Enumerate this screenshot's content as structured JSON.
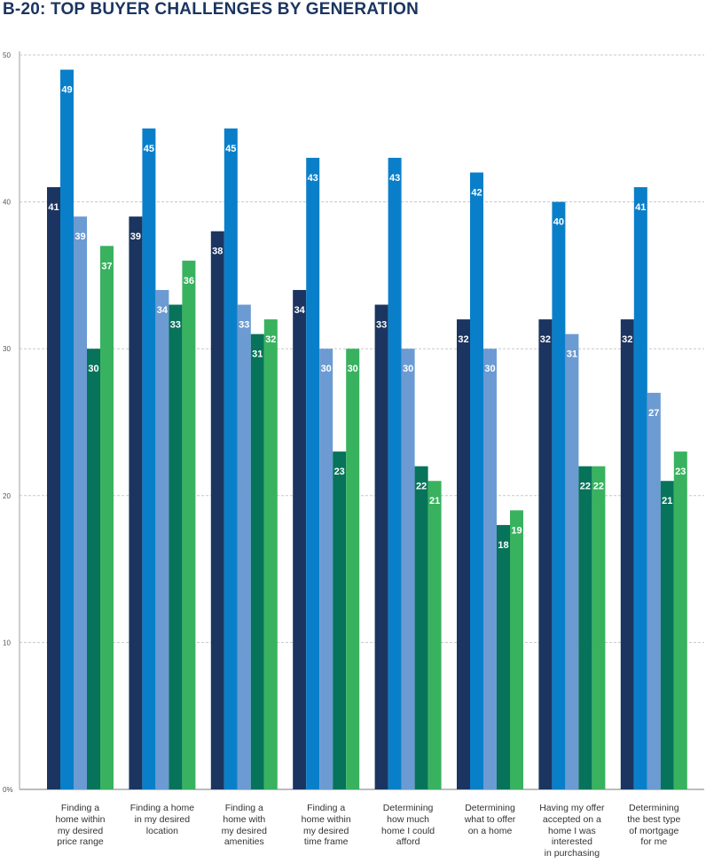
{
  "chart_data": {
    "type": "bar",
    "title": "B-20: TOP BUYER CHALLENGES BY GENERATION",
    "categories": [
      "Finding a home within my desired price range",
      "Finding a home in my desired location",
      "Finding a home with my desired amenities",
      "Finding a home within my desired time frame",
      "Determining how much home I could afford",
      "Determining what to offer on a home",
      "Having my offer accepted on a home I was interested in purchasing",
      "Determining the best type of mortgage for me"
    ],
    "category_lines": [
      [
        "Finding a",
        "home within",
        "my desired",
        "price range"
      ],
      [
        "Finding a home",
        "in my desired",
        "location"
      ],
      [
        "Finding a",
        "home with",
        "my desired",
        "amenities"
      ],
      [
        "Finding a",
        "home within",
        "my desired",
        "time frame"
      ],
      [
        "Determining",
        "how much",
        "home I could",
        "afford"
      ],
      [
        "Determining",
        "what to offer",
        "on a home"
      ],
      [
        "Having my offer",
        "accepted on a",
        "home I was",
        "interested",
        "in purchasing"
      ],
      [
        "Determining",
        "the best type",
        "of mortgage",
        "for me"
      ]
    ],
    "series": [
      {
        "color": "#1b3560",
        "values": [
          41,
          39,
          38,
          34,
          33,
          32,
          32,
          32
        ]
      },
      {
        "color": "#0a7fc9",
        "values": [
          49,
          45,
          45,
          43,
          43,
          42,
          40,
          41
        ]
      },
      {
        "color": "#6b9bd2",
        "values": [
          39,
          34,
          33,
          30,
          30,
          30,
          31,
          27
        ]
      },
      {
        "color": "#07735a",
        "values": [
          30,
          33,
          31,
          23,
          22,
          18,
          22,
          21
        ]
      },
      {
        "color": "#38b25f",
        "values": [
          37,
          36,
          32,
          30,
          21,
          19,
          22,
          23
        ]
      }
    ],
    "ylim": [
      0,
      50
    ],
    "yticks": [
      0,
      10,
      20,
      30,
      40,
      50
    ],
    "ytick_labels": [
      "0%",
      "10",
      "20",
      "30",
      "40",
      "50"
    ],
    "grid": true,
    "data_labels": true,
    "legend": "none"
  }
}
